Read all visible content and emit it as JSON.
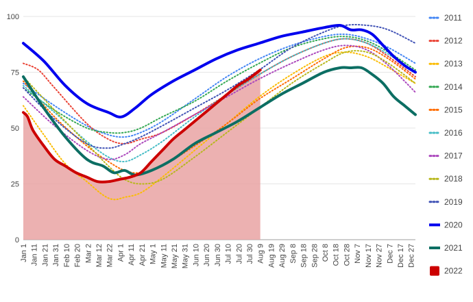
{
  "chart_data": {
    "type": "line",
    "title": "",
    "xlabel": "",
    "ylabel": "",
    "ylim": [
      0,
      100
    ],
    "yticks": [
      0,
      25,
      50,
      75,
      100
    ],
    "xlim": [
      1,
      365
    ],
    "legend_position": "right",
    "grid": "horizontal",
    "x_ticks": [
      {
        "label": "Jan 1",
        "day": 1
      },
      {
        "label": "Jan 11",
        "day": 11
      },
      {
        "label": "Jan 21",
        "day": 21
      },
      {
        "label": "Jan 31",
        "day": 31
      },
      {
        "label": "Feb 10",
        "day": 41
      },
      {
        "label": "Feb 20",
        "day": 51
      },
      {
        "label": "Mar 2",
        "day": 61
      },
      {
        "label": "Mar 12",
        "day": 71
      },
      {
        "label": "Mar 22",
        "day": 81
      },
      {
        "label": "Apr 1",
        "day": 91
      },
      {
        "label": "Apr 11",
        "day": 101
      },
      {
        "label": "Apr 21",
        "day": 111
      },
      {
        "label": "May 1",
        "day": 121
      },
      {
        "label": "May 11",
        "day": 131
      },
      {
        "label": "May 21",
        "day": 141
      },
      {
        "label": "May 31",
        "day": 151
      },
      {
        "label": "Jun 10",
        "day": 161
      },
      {
        "label": "Jun 20",
        "day": 171
      },
      {
        "label": "Jun 30",
        "day": 181
      },
      {
        "label": "Jul 10",
        "day": 191
      },
      {
        "label": "Jul 20",
        "day": 201
      },
      {
        "label": "Jul 30",
        "day": 211
      },
      {
        "label": "Aug 9",
        "day": 221
      },
      {
        "label": "Aug 19",
        "day": 231
      },
      {
        "label": "Aug 29",
        "day": 241
      },
      {
        "label": "Sep 8",
        "day": 251
      },
      {
        "label": "Sep 18",
        "day": 261
      },
      {
        "label": "Sep 28",
        "day": 271
      },
      {
        "label": "Oct 8",
        "day": 281
      },
      {
        "label": "Oct 18",
        "day": 291
      },
      {
        "label": "Oct 28",
        "day": 301
      },
      {
        "label": "Nov 7",
        "day": 311
      },
      {
        "label": "Nov 17",
        "day": 321
      },
      {
        "label": "Nov 27",
        "day": 331
      },
      {
        "label": "Dec 7",
        "day": 341
      },
      {
        "label": "Dec 17",
        "day": 351
      },
      {
        "label": "Dec 27",
        "day": 361
      }
    ],
    "series": [
      {
        "name": "2011",
        "color": "#4285f4",
        "style": "dotted",
        "x": [
          1,
          30,
          60,
          80,
          95,
          110,
          130,
          160,
          190,
          220,
          250,
          280,
          300,
          320,
          340,
          365
        ],
        "y": [
          70,
          60,
          51,
          47,
          46,
          48,
          53,
          63,
          73,
          81,
          87,
          91,
          92,
          90,
          86,
          79
        ]
      },
      {
        "name": "2012",
        "color": "#ea4335",
        "style": "dotted",
        "x": [
          1,
          15,
          30,
          60,
          80,
          95,
          110,
          130,
          160,
          190,
          220,
          250,
          280,
          300,
          320,
          340,
          365
        ],
        "y": [
          79,
          76,
          68,
          52,
          45,
          43,
          45,
          48,
          56,
          65,
          74,
          82,
          88,
          90,
          88,
          82,
          73
        ]
      },
      {
        "name": "2013",
        "color": "#fbbc04",
        "style": "dotted",
        "x": [
          1,
          20,
          40,
          60,
          75,
          85,
          95,
          110,
          130,
          160,
          190,
          220,
          250,
          280,
          300,
          320,
          340,
          365
        ],
        "y": [
          60,
          47,
          34,
          26,
          20,
          18,
          19,
          21,
          28,
          40,
          52,
          64,
          74,
          82,
          84,
          82,
          77,
          70
        ]
      },
      {
        "name": "2014",
        "color": "#34a853",
        "style": "dotted",
        "x": [
          1,
          30,
          60,
          80,
          95,
          110,
          130,
          160,
          190,
          220,
          250,
          280,
          300,
          320,
          340,
          365
        ],
        "y": [
          68,
          58,
          50,
          48,
          48,
          50,
          55,
          62,
          71,
          79,
          86,
          90,
          91,
          89,
          84,
          76
        ]
      },
      {
        "name": "2015",
        "color": "#ff6d01",
        "style": "dotted",
        "x": [
          1,
          30,
          60,
          80,
          95,
          110,
          130,
          160,
          190,
          220,
          250,
          280,
          300,
          320,
          340,
          365
        ],
        "y": [
          71,
          55,
          42,
          35,
          31,
          30,
          33,
          42,
          52,
          63,
          72,
          81,
          86,
          86,
          81,
          72
        ]
      },
      {
        "name": "2016",
        "color": "#46bdc6",
        "style": "dotted",
        "x": [
          1,
          30,
          60,
          80,
          95,
          110,
          130,
          160,
          190,
          220,
          250,
          280,
          300,
          320,
          340,
          365
        ],
        "y": [
          69,
          57,
          44,
          37,
          35,
          38,
          44,
          55,
          65,
          74,
          82,
          88,
          90,
          88,
          83,
          75
        ]
      },
      {
        "name": "2017",
        "color": "#ab47bc",
        "style": "dotted",
        "x": [
          1,
          30,
          60,
          80,
          95,
          110,
          130,
          160,
          190,
          220,
          250,
          280,
          300,
          320,
          340,
          365
        ],
        "y": [
          64,
          51,
          40,
          36,
          38,
          43,
          48,
          56,
          64,
          72,
          79,
          85,
          87,
          85,
          78,
          66
        ]
      },
      {
        "name": "2018",
        "color": "#b7b71b",
        "style": "dotted",
        "x": [
          1,
          30,
          60,
          80,
          95,
          110,
          130,
          160,
          190,
          220,
          250,
          280,
          300,
          320,
          340,
          365
        ],
        "y": [
          73,
          58,
          43,
          33,
          27,
          25,
          27,
          37,
          48,
          59,
          70,
          79,
          84,
          84,
          79,
          70
        ]
      },
      {
        "name": "2019",
        "color": "#3f51b5",
        "style": "dotted",
        "x": [
          1,
          30,
          60,
          80,
          95,
          110,
          130,
          160,
          190,
          220,
          250,
          280,
          300,
          320,
          340,
          365
        ],
        "y": [
          68,
          54,
          43,
          41,
          43,
          46,
          51,
          59,
          67,
          76,
          86,
          93,
          96,
          96,
          94,
          88
        ]
      },
      {
        "name": "2020",
        "color": "#0000ee",
        "style": "solid",
        "x": [
          1,
          20,
          40,
          60,
          80,
          92,
          105,
          120,
          140,
          160,
          180,
          200,
          220,
          240,
          260,
          280,
          295,
          305,
          315,
          325,
          335,
          345,
          355,
          365
        ],
        "y": [
          88,
          80,
          69,
          61,
          57,
          55,
          59,
          65,
          71,
          76,
          81,
          85,
          88,
          91,
          93,
          95,
          96,
          94,
          94,
          92,
          87,
          82,
          78,
          75
        ]
      },
      {
        "name": "2021",
        "color": "#0c6e63",
        "style": "solid",
        "x": [
          1,
          20,
          40,
          60,
          75,
          85,
          95,
          105,
          120,
          140,
          160,
          180,
          200,
          220,
          240,
          260,
          280,
          295,
          305,
          315,
          325,
          335,
          345,
          355,
          365
        ],
        "y": [
          73,
          59,
          46,
          36,
          33,
          30,
          31,
          29,
          31,
          36,
          43,
          48,
          53,
          59,
          65,
          70,
          75,
          77,
          77,
          77,
          74,
          70,
          64,
          60,
          56
        ]
      },
      {
        "name": "2022",
        "color": "#cc0000",
        "style": "solid-area",
        "x": [
          1,
          5,
          10,
          20,
          30,
          40,
          50,
          60,
          70,
          80,
          90,
          100,
          110,
          120,
          130,
          140,
          150,
          160,
          170,
          180,
          190,
          200,
          210,
          221
        ],
        "y": [
          57,
          55,
          49,
          42,
          36,
          33,
          30,
          28,
          26,
          26,
          27,
          28,
          30,
          35,
          40,
          45,
          49,
          53,
          57,
          61,
          65,
          69,
          72,
          76
        ]
      }
    ]
  }
}
